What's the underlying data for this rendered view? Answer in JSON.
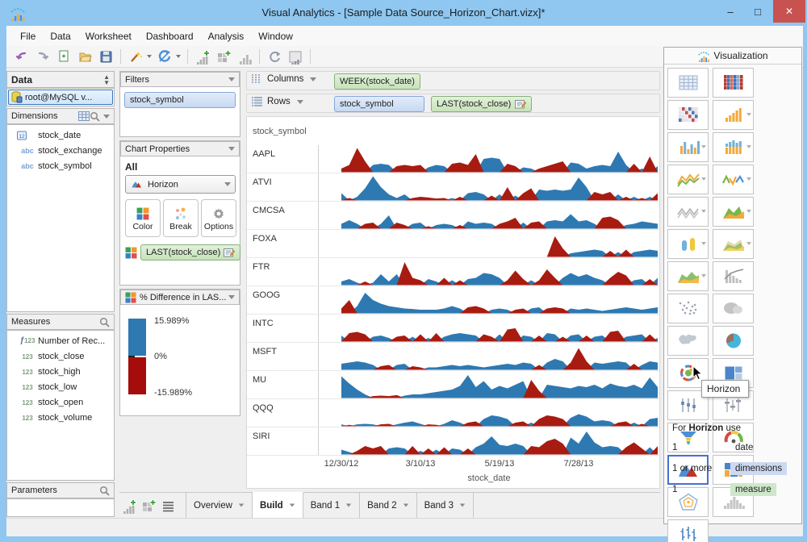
{
  "window": {
    "title": "Visual Analytics - [Sample Data Source_Horizon_Chart.vizx]*"
  },
  "menu": {
    "items": [
      "File",
      "Data",
      "Worksheet",
      "Dashboard",
      "Analysis",
      "Window"
    ]
  },
  "toolbar": {
    "items": [
      {
        "icon": "undo-icon"
      },
      {
        "icon": "redo-icon"
      },
      {
        "icon": "new-doc-icon"
      },
      {
        "icon": "open-folder-icon"
      },
      {
        "icon": "save-icon"
      },
      {
        "sep": true
      },
      {
        "icon": "wizard-icon",
        "dropdown": true
      },
      {
        "icon": "refresh-icon",
        "dropdown": true
      },
      {
        "sep": true
      },
      {
        "icon": "add-chart-icon"
      },
      {
        "icon": "add-dashboard-icon"
      },
      {
        "icon": "small-bars-icon"
      },
      {
        "sep": true
      },
      {
        "icon": "rotate-icon"
      },
      {
        "icon": "chart-slide-icon"
      },
      {
        "sep": true
      }
    ]
  },
  "data_panel": {
    "title": "Data",
    "connection": "root@MySQL v...",
    "dimensions": {
      "label": "Dimensions",
      "items": [
        {
          "icon": "date",
          "label": "stock_date"
        },
        {
          "icon": "abc",
          "label": "stock_exchange"
        },
        {
          "icon": "abc",
          "label": "stock_symbol"
        }
      ]
    },
    "measures": {
      "label": "Measures",
      "items": [
        {
          "icon": "f123",
          "label": "Number of Rec..."
        },
        {
          "icon": "123",
          "label": "stock_close"
        },
        {
          "icon": "123",
          "label": "stock_high"
        },
        {
          "icon": "123",
          "label": "stock_low"
        },
        {
          "icon": "123",
          "label": "stock_open"
        },
        {
          "icon": "123",
          "label": "stock_volume"
        }
      ]
    },
    "parameters": {
      "label": "Parameters"
    }
  },
  "filters_panel": {
    "title": "Filters",
    "pills": [
      {
        "label": "stock_symbol",
        "color": "blue"
      }
    ]
  },
  "chart_properties": {
    "title": "Chart Properties",
    "scope": "All",
    "chart_type": "Horizon",
    "buttons": [
      {
        "label": "Color",
        "icon": "color-squares-icon"
      },
      {
        "label": "Break",
        "icon": "break-dots-icon"
      },
      {
        "label": "Options",
        "icon": "gear-icon"
      }
    ],
    "encoding_pill": "LAST(stock_close)"
  },
  "legend": {
    "title": "% Difference in LAS...",
    "max": "15.989%",
    "mid": "0%",
    "min": "-15.989%",
    "top_color": "#2e79b2",
    "bottom_color": "#a50d0d"
  },
  "shelves": {
    "columns": {
      "label": "Columns",
      "pills": [
        {
          "label": "WEEK(stock_date)",
          "color": "green"
        }
      ]
    },
    "rows": {
      "label": "Rows",
      "pills": [
        {
          "label": "stock_symbol",
          "color": "blue"
        },
        {
          "label": "LAST(stock_close)",
          "color": "green",
          "edit": true
        }
      ]
    }
  },
  "chart_data": {
    "type": "area",
    "subtype": "horizon",
    "row_header": "stock_symbol",
    "xlabel": "stock_date",
    "x_tick_labels": [
      "12/30/12",
      "3/10/13",
      "5/19/13",
      "7/28/13"
    ],
    "x_tick_weeks": [
      0,
      10,
      20,
      30
    ],
    "value_range": [
      -1,
      1
    ],
    "colors": {
      "positive": "#2e79b2",
      "negative": "#a81b10"
    },
    "series": [
      {
        "name": "AAPL",
        "values": [
          -0.15,
          -0.3,
          -1,
          -0.45,
          0.3,
          0.35,
          0.3,
          -0.25,
          -0.3,
          -0.25,
          -0.3,
          0.2,
          0.3,
          0.25,
          -0.35,
          -0.4,
          -0.3,
          -0.75,
          0.55,
          0.6,
          0.55,
          -0.35,
          -0.25,
          0.2,
          0.15,
          -0.15,
          -0.25,
          -0.35,
          -0.45,
          0.4,
          0.35,
          0.15,
          0.25,
          0.3,
          0.25,
          0.85,
          0.3,
          -0.35,
          0.15,
          -0.65,
          0.25
        ]
      },
      {
        "name": "ATVI",
        "values": [
          0.3,
          -0.1,
          0.15,
          0.5,
          1,
          0.55,
          0.25,
          0.1,
          0.25,
          -0.1,
          -0.15,
          -0.12,
          -0.08,
          -0.1,
          0.1,
          -0.15,
          0.3,
          0.35,
          0.25,
          -0.2,
          0.25,
          -0.55,
          0.2,
          -0.3,
          -0.5,
          0.45,
          0.4,
          0.45,
          0.4,
          0.45,
          0.95,
          0.55,
          -0.35,
          -0.25,
          -0.35,
          0.25,
          -0.15,
          0.15,
          -0.1,
          0.15,
          -0.3
        ]
      },
      {
        "name": "CMCSA",
        "values": [
          0.2,
          0.35,
          0.2,
          -0.2,
          -0.25,
          0.2,
          0.55,
          -0.25,
          -0.15,
          0.2,
          0.25,
          -0.1,
          0.15,
          0.2,
          0.15,
          -0.15,
          0.3,
          0.2,
          0.25,
          0.2,
          -0.2,
          -0.3,
          -0.45,
          0.25,
          -0.25,
          -0.3,
          0.3,
          0.35,
          0.3,
          0.6,
          0.3,
          0.35,
          0.2,
          -0.45,
          -0.5,
          -0.35,
          0.15,
          0.2,
          0.3,
          0.25,
          0.2
        ]
      },
      {
        "name": "FOXA",
        "values": [
          0,
          0,
          0,
          0,
          0,
          0,
          0,
          0,
          0,
          0,
          0,
          0,
          0,
          0,
          0,
          0,
          0,
          0,
          0,
          0,
          0,
          0,
          0,
          0,
          0,
          0,
          0,
          -0.85,
          -0.35,
          0.15,
          0.2,
          0.25,
          0.3,
          0.25,
          -0.25,
          0.2,
          -0.3,
          0.2,
          0.25,
          0.3,
          0.25
        ]
      },
      {
        "name": "FTR",
        "values": [
          0.15,
          0.25,
          0.1,
          -0.15,
          0.1,
          0.45,
          0.15,
          0.45,
          -0.95,
          -0.3,
          -0.2,
          0.25,
          0.15,
          -0.3,
          0.2,
          -0.2,
          0.25,
          0.3,
          0.5,
          0.45,
          0.3,
          -0.2,
          -0.6,
          -0.25,
          0.2,
          -0.2,
          -0.65,
          -0.3,
          0.3,
          0.5,
          0.35,
          0.45,
          0.3,
          0.2,
          -0.3,
          -0.55,
          -0.4,
          0.2,
          0.25,
          -0.25,
          0.3
        ]
      },
      {
        "name": "GOOG",
        "values": [
          -0.2,
          -0.55,
          0.3,
          0.85,
          0.55,
          0.4,
          0.3,
          0.25,
          0.2,
          0.18,
          0.15,
          0.15,
          0.15,
          0.2,
          0.3,
          0.2,
          -0.25,
          -0.3,
          -0.2,
          0.15,
          0.2,
          0.15,
          -0.15,
          -0.2,
          0.2,
          0.25,
          -0.2,
          -0.25,
          -0.2,
          0.2,
          0.15,
          0.2,
          0.15,
          0.1,
          0.15,
          0.2,
          0.25,
          0.2,
          0.15,
          0.2,
          0.25
        ]
      },
      {
        "name": "INTC",
        "values": [
          0.25,
          -0.35,
          -0.4,
          -0.3,
          0.2,
          0.25,
          0.15,
          -0.2,
          -0.25,
          0.2,
          -0.3,
          0.15,
          -0.35,
          0.2,
          0.3,
          0.35,
          0.3,
          0.25,
          -0.3,
          -0.2,
          0.3,
          -0.5,
          -0.55,
          0.25,
          0.2,
          -0.25,
          0.35,
          0.3,
          -0.2,
          0.25,
          0.3,
          -0.25,
          0.2,
          0.25,
          -0.4,
          -0.45,
          0.2,
          0.25,
          0.3,
          -0.3,
          0.15
        ]
      },
      {
        "name": "MSFT",
        "values": [
          0.25,
          0.3,
          0.35,
          0.3,
          0.2,
          -0.15,
          -0.2,
          0.2,
          0.25,
          -0.15,
          -0.1,
          0.1,
          0.1,
          0.15,
          0.2,
          0.15,
          0.2,
          0.15,
          0.1,
          0.15,
          0.2,
          0.25,
          0.2,
          0.3,
          0.25,
          -0.2,
          0.3,
          0.45,
          0.35,
          -0.3,
          -0.9,
          -0.35,
          0.3,
          0.25,
          0.3,
          0.35,
          0.3,
          -0.25,
          0.2,
          0.35,
          0.3
        ]
      },
      {
        "name": "MU",
        "values": [
          0.9,
          0.6,
          0.35,
          0.15,
          -0.08,
          -0.1,
          -0.08,
          -0.12,
          0.1,
          0.15,
          0.15,
          0.2,
          0.25,
          0.3,
          0.35,
          0.5,
          0.95,
          0.45,
          0.7,
          0.35,
          0.5,
          0.4,
          0.55,
          0.7,
          -0.75,
          -0.3,
          0.55,
          0.5,
          0.45,
          0.4,
          0.5,
          0.45,
          0.55,
          0.4,
          0.6,
          0.5,
          0.45,
          0.55,
          0.4,
          0.85,
          0.45
        ]
      },
      {
        "name": "QQQ",
        "values": [
          0.08,
          -0.06,
          0.08,
          0.1,
          0.08,
          -0.08,
          -0.1,
          0.08,
          0.15,
          0.2,
          0.1,
          -0.08,
          -0.06,
          0.1,
          0.25,
          0.15,
          -0.15,
          -0.2,
          0.3,
          0.45,
          0.4,
          0.3,
          -0.15,
          -0.2,
          0.15,
          -0.3,
          -0.45,
          -0.4,
          -0.3,
          0.35,
          0.5,
          0.4,
          0.2,
          0.25,
          0.2,
          -0.15,
          -0.2,
          0.15,
          -0.1,
          0.3,
          0.35
        ]
      },
      {
        "name": "SIRI",
        "values": [
          0.2,
          0.1,
          -0.15,
          -0.35,
          -0.25,
          -0.35,
          0.25,
          0.3,
          0.25,
          -0.35,
          0.15,
          -0.25,
          0.2,
          -0.3,
          0.25,
          0.2,
          -0.25,
          0.3,
          0.45,
          0.75,
          0.4,
          0.35,
          0.45,
          0.35,
          -0.35,
          -0.3,
          -0.55,
          -0.65,
          -0.45,
          0.7,
          0.45,
          0.95,
          0.5,
          0.3,
          0.35,
          0.3,
          -0.3,
          -0.5,
          -0.25,
          0.3,
          -0.35
        ]
      }
    ]
  },
  "visualization_panel": {
    "title": "Visualization",
    "tooltip": "Horizon",
    "items": [
      {
        "name": "table"
      },
      {
        "name": "heat-map"
      },
      {
        "name": "highlight-table"
      },
      {
        "name": "bar-chart",
        "dropdown": true
      },
      {
        "name": "side-by-side-bar",
        "dropdown": true
      },
      {
        "name": "stacked-bar",
        "dropdown": true
      },
      {
        "name": "line-chart",
        "dropdown": true
      },
      {
        "name": "dual-line",
        "dropdown": true
      },
      {
        "name": "step-line",
        "dropdown": true
      },
      {
        "name": "area-chart",
        "dropdown": true
      },
      {
        "name": "dual-combination",
        "dropdown": true
      },
      {
        "name": "stacked-area",
        "dropdown": true
      },
      {
        "name": "continuous-area",
        "dropdown": true
      },
      {
        "name": "pareto"
      },
      {
        "name": "scatter-plot"
      },
      {
        "name": "word-cloud"
      },
      {
        "name": "map"
      },
      {
        "name": "pie-chart"
      },
      {
        "name": "packed-bubbles"
      },
      {
        "name": "treemap"
      },
      {
        "name": "box-plot"
      },
      {
        "name": "gantt"
      },
      {
        "name": "funnel"
      },
      {
        "name": "gauge"
      },
      {
        "name": "horizon",
        "selected": true
      },
      {
        "name": "mosaic"
      },
      {
        "name": "radar"
      },
      {
        "name": "histogram"
      },
      {
        "name": "stock-hilo"
      }
    ],
    "info": {
      "prefix": "For",
      "bold": "Horizon",
      "suffix": "use",
      "requirements": [
        {
          "count": "1",
          "target": "date",
          "highlight": "none"
        },
        {
          "count": "1 or more",
          "target": "dimensions",
          "highlight": "blue"
        },
        {
          "count": "1",
          "target": "measure",
          "highlight": "green"
        }
      ]
    }
  },
  "bottom_bar": {
    "icons": [
      "add-chart-icon",
      "add-dashboard-icon",
      "list-icon"
    ],
    "tabs": [
      {
        "label": "Overview",
        "active": false
      },
      {
        "label": "Build",
        "active": true
      },
      {
        "label": "Band 1",
        "active": false
      },
      {
        "label": "Band 2",
        "active": false
      },
      {
        "label": "Band 3",
        "active": false
      }
    ]
  }
}
